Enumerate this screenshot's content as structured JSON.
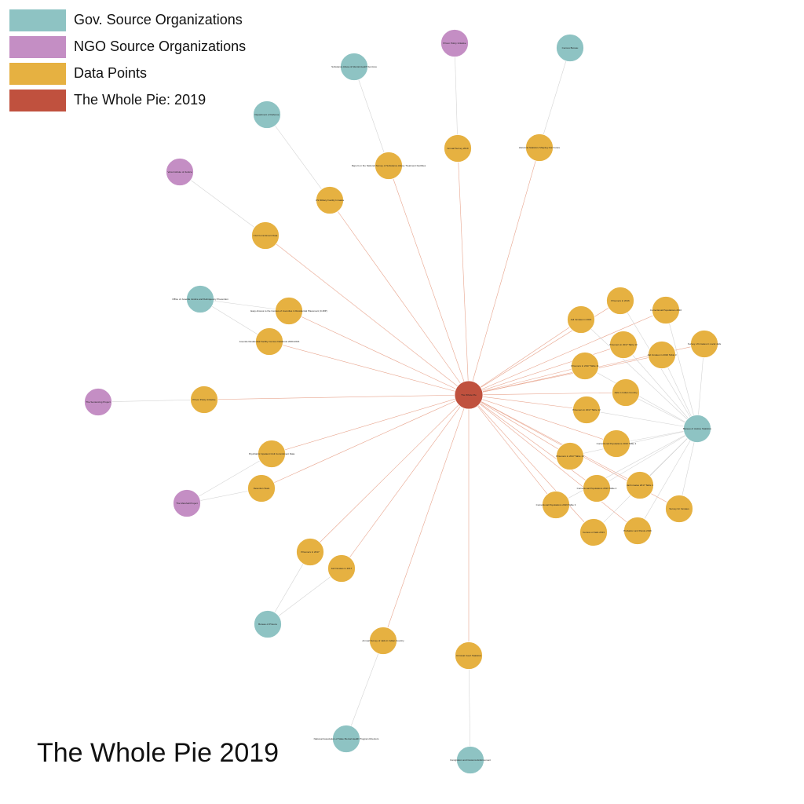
{
  "legend": [
    {
      "label": "Gov. Source Organizations",
      "color": "#8ec3c3"
    },
    {
      "label": "NGO Source Organizations",
      "color": "#c48ec4"
    },
    {
      "label": "Data Points",
      "color": "#e6b141"
    },
    {
      "label": "The Whole Pie: 2019",
      "color": "#c0513e"
    }
  ],
  "footer_title": "The Whole Pie 2019",
  "colors": {
    "gov": "#8ec3c3",
    "ngo": "#c48ec4",
    "data": "#e6b141",
    "center": "#c0513e",
    "edge_center": "#e8a58e",
    "edge_source": "#d4d4d4"
  },
  "center_label": "The Whole Pie",
  "data_points": [
    {
      "id": "d_nat_survey",
      "label": "Annual Survey 2019"
    },
    {
      "id": "d_hist_stats",
      "label": "Historical Statistics Shaping Our Future"
    },
    {
      "id": "d_treatment",
      "label": "Report on the National Survey of Substance Abuse Treatment Facilities"
    },
    {
      "id": "d_mil_facility",
      "label": "US Military Facility Inmates"
    },
    {
      "id": "d_coi",
      "label": "Civil Commitment Data"
    },
    {
      "id": "d_juv_res",
      "label": "Easy Access to the Census of Juveniles in Residential Placement (CJRP)"
    },
    {
      "id": "d_juv_court",
      "label": "Juvenile Residential Facility Census Databook 2000-2016"
    },
    {
      "id": "d_prison_policy",
      "label": "Prison Policy Initiative"
    },
    {
      "id": "d_psych",
      "label": "Psychiatric Inpatient Civil Commitment Data"
    },
    {
      "id": "d_ice",
      "label": "Detention Stats"
    },
    {
      "id": "d_prison_count",
      "label": "Prisoners in 2017"
    },
    {
      "id": "d_jail_count",
      "label": "Jail Inmates in 2017"
    },
    {
      "id": "d_territories",
      "label": "Annual Survey of Jails in Indian Country"
    },
    {
      "id": "d_courts",
      "label": "Criminal Court Statistics"
    },
    {
      "id": "b1",
      "label": "Prisoners in 2016"
    },
    {
      "id": "b2",
      "label": "Correctional Populations 2016"
    },
    {
      "id": "b3",
      "label": "Jail Inmates in 2016"
    },
    {
      "id": "b4",
      "label": "Prisoners in 2017 Table 10"
    },
    {
      "id": "b5",
      "label": "Jail Inmates in 2016 Table 3"
    },
    {
      "id": "b6",
      "label": "Survey of Inmates in Local Jails"
    },
    {
      "id": "b7",
      "label": "Prisoners in 2017 Table 11"
    },
    {
      "id": "b8",
      "label": "Jails in Indian Country"
    },
    {
      "id": "b9",
      "label": "Prisoners in 2017 Table 12"
    },
    {
      "id": "b10",
      "label": "Correctional Populations 2016 Table 1"
    },
    {
      "id": "b11",
      "label": "Prisoners in 2017 Table 13"
    },
    {
      "id": "b12",
      "label": "Correctional Populations 2016 Table 2"
    },
    {
      "id": "b13",
      "label": "Jail Inmates 2017 Table 1"
    },
    {
      "id": "b14",
      "label": "Correctional Populations 2016 Table 3"
    },
    {
      "id": "b15",
      "label": "Census of Jails 2013"
    },
    {
      "id": "b16",
      "label": "Probation and Parole 2016"
    },
    {
      "id": "b17",
      "label": "Survey for Inmates"
    }
  ],
  "gov_sources": [
    {
      "id": "g_census",
      "label": "Census Bureau"
    },
    {
      "id": "g_samhsa",
      "label": "Substance Abuse & Mental Health Services"
    },
    {
      "id": "g_dod",
      "label": "Department of Defense"
    },
    {
      "id": "g_ojjdp",
      "label": "Office of Juvenile Justice and Delinquency Prevention"
    },
    {
      "id": "g_bjs",
      "label": "Bureau of Justice Statistics"
    },
    {
      "id": "g_bop",
      "label": "Bureau of Prisons"
    },
    {
      "id": "g_nasmhpd",
      "label": "National Association of State Mental Health Program Directors"
    },
    {
      "id": "g_ice",
      "label": "Immigration and Customs Enforcement"
    }
  ],
  "ngo_sources": [
    {
      "id": "n_ppi",
      "label": "Prison Policy Initiative"
    },
    {
      "id": "n_vera",
      "label": "Vera Institute of Justice"
    },
    {
      "id": "n_sentencing",
      "label": "The Sentencing Project"
    },
    {
      "id": "n_marshall",
      "label": "The Marshall Project"
    }
  ]
}
